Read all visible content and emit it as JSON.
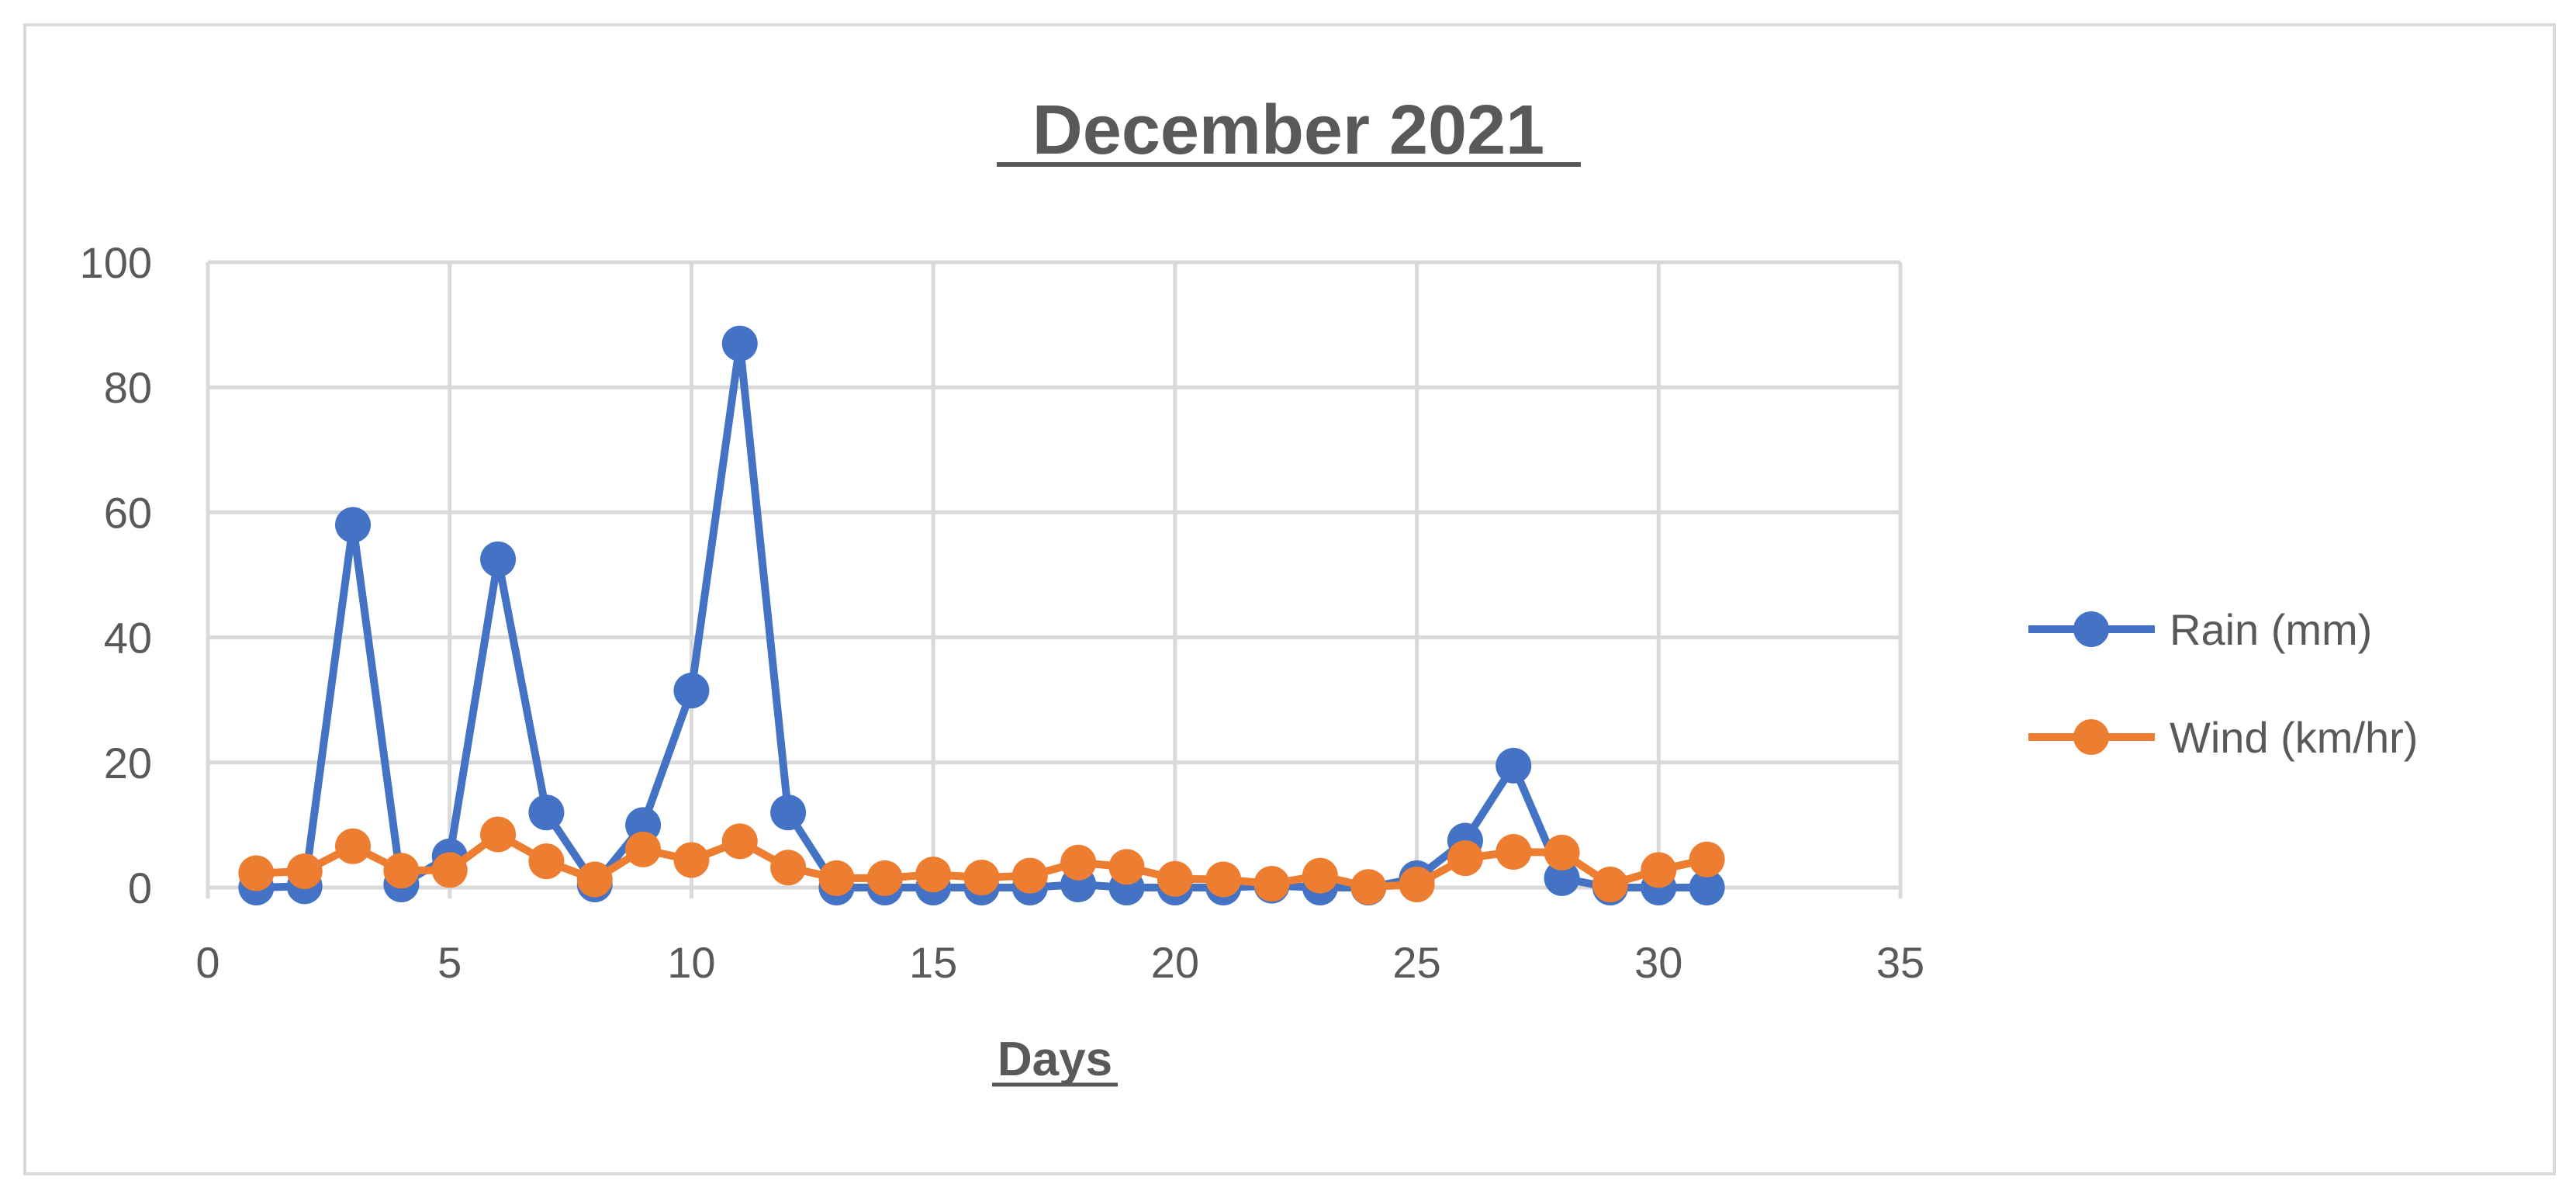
{
  "chart_data": {
    "type": "line",
    "title": "December 2021",
    "xlabel": "Days",
    "ylabel": "",
    "xlim": [
      0,
      35
    ],
    "ylim": [
      0,
      100
    ],
    "xticks": [
      0,
      5,
      10,
      15,
      20,
      25,
      30,
      35
    ],
    "yticks": [
      0,
      20,
      40,
      60,
      80,
      100
    ],
    "grid": true,
    "legend_position": "right",
    "x": [
      1,
      2,
      3,
      4,
      5,
      6,
      7,
      8,
      9,
      10,
      11,
      12,
      13,
      14,
      15,
      16,
      17,
      18,
      19,
      20,
      21,
      22,
      23,
      24,
      25,
      26,
      27,
      28,
      29,
      30,
      31
    ],
    "series": [
      {
        "name": "Rain (mm)",
        "color": "#4472C4",
        "values": [
          0,
          0.2,
          58,
          0.5,
          5,
          52.5,
          12,
          0.5,
          10,
          31.5,
          87,
          12,
          0,
          0,
          0,
          0,
          0,
          0.5,
          0,
          0,
          0,
          0.3,
          0,
          0,
          1.5,
          7.5,
          19.5,
          1.5,
          0,
          0,
          0
        ]
      },
      {
        "name": "Wind (km/hr)",
        "color": "#ED7D31",
        "values": [
          2.3,
          2.6,
          6.6,
          2.7,
          2.8,
          8.5,
          4.2,
          1.3,
          6.1,
          4.4,
          7.4,
          3.2,
          1.5,
          1.5,
          2.1,
          1.6,
          1.9,
          4.0,
          3.3,
          1.4,
          1.3,
          0.6,
          1.9,
          0.1,
          0.5,
          4.7,
          5.7,
          5.6,
          0.5,
          2.8,
          4.5
        ]
      }
    ]
  }
}
